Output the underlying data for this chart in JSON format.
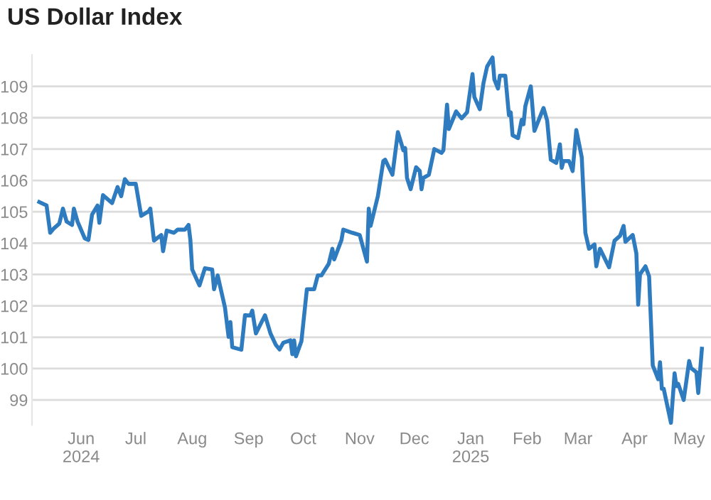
{
  "chart_data": {
    "type": "line",
    "title": "US Dollar Index",
    "x": [
      "2024-05-09",
      "2024-05-13",
      "2024-05-15",
      "2024-05-17",
      "2024-05-20",
      "2024-05-22",
      "2024-05-24",
      "2024-05-27",
      "2024-05-28",
      "2024-05-30",
      "2024-06-03",
      "2024-06-05",
      "2024-06-07",
      "2024-06-10",
      "2024-06-11",
      "2024-06-13",
      "2024-06-18",
      "2024-06-21",
      "2024-06-23",
      "2024-06-25",
      "2024-06-27",
      "2024-07-01",
      "2024-07-04",
      "2024-07-08",
      "2024-07-09",
      "2024-07-11",
      "2024-07-15",
      "2024-07-16",
      "2024-07-18",
      "2024-07-22",
      "2024-07-24",
      "2024-07-28",
      "2024-07-30",
      "2024-07-31",
      "2024-08-01",
      "2024-08-05",
      "2024-08-08",
      "2024-08-12",
      "2024-08-13",
      "2024-08-15",
      "2024-08-19",
      "2024-08-21",
      "2024-08-22",
      "2024-08-23",
      "2024-08-28",
      "2024-08-30",
      "2024-09-02",
      "2024-09-03",
      "2024-09-05",
      "2024-09-10",
      "2024-09-13",
      "2024-09-16",
      "2024-09-18",
      "2024-09-20",
      "2024-09-24",
      "2024-09-25",
      "2024-09-26",
      "2024-09-27",
      "2024-09-30",
      "2024-10-03",
      "2024-10-07",
      "2024-10-09",
      "2024-10-11",
      "2024-10-15",
      "2024-10-17",
      "2024-10-18",
      "2024-10-22",
      "2024-10-23",
      "2024-10-28",
      "2024-11-01",
      "2024-11-05",
      "2024-11-06",
      "2024-11-07",
      "2024-11-11",
      "2024-11-14",
      "2024-11-15",
      "2024-11-19",
      "2024-11-22",
      "2024-11-25",
      "2024-11-26",
      "2024-11-27",
      "2024-11-29",
      "2024-12-02",
      "2024-12-04",
      "2024-12-05",
      "2024-12-06",
      "2024-12-09",
      "2024-12-12",
      "2024-12-16",
      "2024-12-17",
      "2024-12-19",
      "2024-12-20",
      "2024-12-24",
      "2024-12-27",
      "2024-12-30",
      "2025-01-02",
      "2025-01-03",
      "2025-01-06",
      "2025-01-08",
      "2025-01-10",
      "2025-01-13",
      "2025-01-14",
      "2025-01-16",
      "2025-01-17",
      "2025-01-20",
      "2025-01-22",
      "2025-01-23",
      "2025-01-24",
      "2025-01-27",
      "2025-01-29",
      "2025-01-30",
      "2025-01-31",
      "2025-02-03",
      "2025-02-05",
      "2025-02-10",
      "2025-02-12",
      "2025-02-14",
      "2025-02-17",
      "2025-02-19",
      "2025-02-20",
      "2025-02-21",
      "2025-02-24",
      "2025-02-26",
      "2025-02-28",
      "2025-03-03",
      "2025-03-05",
      "2025-03-07",
      "2025-03-10",
      "2025-03-11",
      "2025-03-13",
      "2025-03-18",
      "2025-03-21",
      "2025-03-24",
      "2025-03-26",
      "2025-03-27",
      "2025-03-31",
      "2025-04-02",
      "2025-04-03",
      "2025-04-04",
      "2025-04-07",
      "2025-04-09",
      "2025-04-11",
      "2025-04-14",
      "2025-04-15",
      "2025-04-16",
      "2025-04-17",
      "2025-04-21",
      "2025-04-23",
      "2025-04-24",
      "2025-04-25",
      "2025-04-28",
      "2025-05-01",
      "2025-05-02",
      "2025-05-05",
      "2025-05-06",
      "2025-05-08"
    ],
    "values": [
      105.31,
      105.2,
      104.33,
      104.47,
      104.62,
      105.1,
      104.69,
      104.58,
      105.1,
      104.69,
      104.15,
      104.1,
      104.91,
      105.2,
      104.65,
      105.53,
      105.28,
      105.79,
      105.5,
      106.04,
      105.89,
      105.89,
      104.87,
      105.01,
      105.1,
      104.08,
      104.26,
      103.74,
      104.4,
      104.33,
      104.43,
      104.43,
      104.58,
      104.1,
      103.16,
      102.65,
      103.2,
      103.16,
      102.53,
      102.97,
      101.95,
      101.01,
      101.48,
      100.68,
      100.6,
      101.7,
      101.69,
      101.85,
      101.12,
      101.7,
      101.12,
      100.75,
      100.61,
      100.82,
      100.9,
      100.46,
      100.9,
      100.39,
      100.87,
      102.53,
      102.53,
      102.97,
      102.97,
      103.34,
      103.82,
      103.48,
      104.1,
      104.43,
      104.33,
      104.26,
      103.41,
      105.1,
      104.55,
      105.5,
      106.62,
      106.66,
      106.18,
      107.54,
      106.96,
      107.03,
      106.08,
      105.72,
      106.42,
      106.3,
      105.72,
      106.08,
      106.18,
      107.0,
      106.88,
      106.96,
      108.42,
      107.64,
      108.2,
      107.98,
      108.17,
      109.39,
      108.66,
      108.27,
      109.1,
      109.63,
      109.92,
      109.22,
      108.93,
      109.34,
      109.34,
      108.08,
      108.17,
      107.44,
      107.35,
      107.93,
      107.79,
      108.37,
      109.0,
      107.58,
      108.31,
      107.91,
      106.66,
      106.56,
      107.15,
      106.4,
      106.62,
      106.62,
      106.3,
      107.61,
      106.74,
      104.33,
      103.82,
      103.96,
      103.26,
      103.82,
      103.23,
      104.08,
      104.23,
      104.55,
      104.04,
      104.26,
      103.67,
      102.04,
      103.01,
      103.26,
      102.94,
      100.1,
      99.66,
      100.2,
      99.36,
      99.36,
      98.27,
      99.85,
      99.44,
      99.51,
      99.0,
      100.24,
      100.02,
      99.88,
      99.22,
      100.63
    ],
    "color": "#2e7bbf",
    "xlim": [
      "2024-05-05",
      "2025-05-13"
    ],
    "xticks": [
      {
        "value": "2024-06-01",
        "label": "Jun\n2024"
      },
      {
        "value": "2024-07-01",
        "label": "Jul"
      },
      {
        "value": "2024-08-01",
        "label": "Aug"
      },
      {
        "value": "2024-09-01",
        "label": "Sep"
      },
      {
        "value": "2024-10-01",
        "label": "Oct"
      },
      {
        "value": "2024-11-01",
        "label": "Nov"
      },
      {
        "value": "2024-12-01",
        "label": "Dec"
      },
      {
        "value": "2025-01-01",
        "label": "Jan\n2025"
      },
      {
        "value": "2025-02-01",
        "label": "Feb"
      },
      {
        "value": "2025-03-01",
        "label": "Mar"
      },
      {
        "value": "2025-04-01",
        "label": "Apr"
      },
      {
        "value": "2025-05-01",
        "label": "May"
      }
    ],
    "ylim": [
      98.2,
      110
    ],
    "yticks": [
      99,
      100,
      101,
      102,
      103,
      104,
      105,
      106,
      107,
      108,
      109
    ],
    "grid": "y",
    "legend": false,
    "marker": "none",
    "line_style": "solid"
  }
}
